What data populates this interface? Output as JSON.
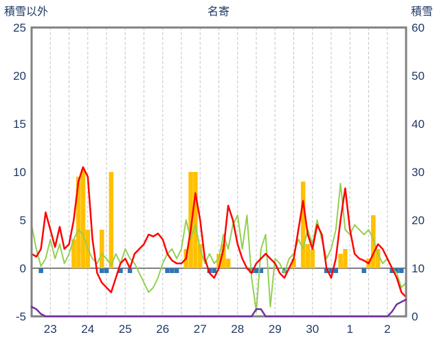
{
  "chart_data": {
    "type": "line",
    "title": "名寄",
    "left_axis": {
      "label": "積雪以外",
      "min": -5,
      "max": 25,
      "ticks": [
        -5,
        0,
        5,
        10,
        15,
        20,
        25
      ]
    },
    "right_axis": {
      "label": "積雪",
      "min": 0,
      "max": 60,
      "ticks": [
        0,
        10,
        20,
        30,
        40,
        50,
        60
      ]
    },
    "x_axis": {
      "day_labels": [
        "23",
        "24",
        "25",
        "26",
        "27",
        "28",
        "29",
        "30",
        "1",
        "2"
      ],
      "hours_total": 240,
      "gridline_interval_hours": 12
    },
    "sample_interval_hours": 3,
    "colors": {
      "red": "#FF0000",
      "green": "#92D050",
      "orange": "#FFC000",
      "blue": "#2E75B6",
      "purple": "#7030A0",
      "grid": "#C3C3C3",
      "frame": "#808080",
      "zero_line": "#808080",
      "text": "#1F3864",
      "background": "#FFFFFF"
    },
    "series": [
      {
        "name": "orange-bars",
        "axis": "left",
        "type": "bar",
        "direction": "up",
        "color": "#FFC000",
        "values": [
          0,
          0,
          0,
          0,
          0,
          0,
          0,
          0,
          0,
          3,
          9.5,
          10.3,
          4,
          0,
          0,
          4,
          0,
          10,
          0,
          0,
          0,
          0,
          0,
          0,
          0,
          0,
          0,
          0,
          0,
          0,
          0,
          0,
          0,
          2,
          10,
          10,
          2.5,
          0,
          0,
          0,
          1.5,
          2.5,
          1,
          0,
          0,
          0,
          0,
          0,
          0,
          0,
          0,
          0,
          0,
          0,
          0,
          0,
          1,
          0,
          9,
          2.5,
          2,
          0,
          0,
          0,
          0,
          0,
          1.5,
          2,
          0,
          0,
          0,
          0,
          1,
          5.5,
          2,
          0,
          0,
          0,
          0,
          0,
          0
        ]
      },
      {
        "name": "blue-bars",
        "axis": "left",
        "type": "bar",
        "direction": "down",
        "color": "#2E75B6",
        "values": [
          0,
          0,
          0.5,
          0,
          0,
          0,
          0,
          0,
          0,
          0,
          0,
          0,
          0,
          0,
          0,
          0.5,
          0.5,
          0,
          0,
          0.5,
          0,
          0.5,
          0,
          0,
          0,
          0,
          0,
          0,
          0,
          0.5,
          0.5,
          0.5,
          0,
          0,
          0,
          0,
          0,
          0,
          0.5,
          0.5,
          0,
          0,
          0,
          0,
          0,
          0,
          0,
          0.5,
          0.5,
          0.5,
          0,
          0,
          0,
          0,
          0.5,
          0,
          0,
          0,
          0,
          0,
          0,
          0,
          0,
          0.5,
          0.5,
          0.5,
          0,
          0,
          0,
          0,
          0,
          0.5,
          0,
          0,
          0,
          0,
          0,
          0.5,
          0.5,
          0.5,
          0
        ]
      },
      {
        "name": "green-line",
        "axis": "left",
        "type": "line",
        "stroke_width": 2,
        "color": "#92D050",
        "values": [
          4.5,
          2.0,
          0.2,
          1.0,
          3.0,
          1.0,
          2.5,
          0.5,
          1.5,
          3.0,
          4.0,
          3.5,
          2.0,
          1.0,
          0.5,
          1.5,
          1.0,
          0.3,
          1.5,
          0.5,
          2.0,
          1.0,
          0.5,
          -0.5,
          -1.5,
          -2.5,
          -2.0,
          -1.0,
          0.5,
          1.5,
          2.0,
          1.0,
          2.0,
          5.0,
          3.0,
          4.5,
          2.0,
          0.5,
          1.5,
          0.5,
          1.0,
          3.5,
          2.0,
          4.5,
          5.5,
          2.0,
          5.5,
          -1.0,
          -4.5,
          2.0,
          3.5,
          -4.0,
          1.0,
          0.5,
          -0.5,
          1.0,
          1.5,
          3.0,
          2.0,
          4.0,
          2.5,
          5.0,
          3.0,
          1.0,
          2.0,
          4.0,
          8.8,
          4.0,
          3.5,
          4.5,
          4.0,
          3.5,
          4.0,
          3.0,
          1.5,
          0.5,
          1.0,
          0.0,
          -0.5,
          -2.0,
          -1.5
        ]
      },
      {
        "name": "red-line",
        "axis": "left",
        "type": "line",
        "stroke_width": 2.5,
        "color": "#FF0000",
        "values": [
          1.5,
          1.2,
          2.0,
          5.8,
          4.0,
          2.2,
          4.3,
          2.0,
          2.5,
          5.0,
          9.0,
          10.5,
          9.5,
          3.0,
          -0.5,
          -1.5,
          -2.0,
          -2.5,
          -1.0,
          0.5,
          1.0,
          0.0,
          1.5,
          2.0,
          2.5,
          3.5,
          3.3,
          3.6,
          3.0,
          1.5,
          0.8,
          0.5,
          0.5,
          1.0,
          4.0,
          7.8,
          5.0,
          1.0,
          -0.5,
          -1.0,
          0.0,
          2.0,
          6.5,
          5.0,
          2.5,
          1.0,
          0.0,
          -0.5,
          0.5,
          1.0,
          1.5,
          1.0,
          0.5,
          -0.5,
          -1.0,
          0.0,
          1.0,
          4.0,
          7.0,
          3.5,
          2.0,
          4.5,
          3.5,
          0.0,
          -1.0,
          1.0,
          5.0,
          8.3,
          4.0,
          1.5,
          1.0,
          0.8,
          0.5,
          1.5,
          2.5,
          2.0,
          1.0,
          0.0,
          -1.0,
          -2.5,
          -3.0
        ]
      },
      {
        "name": "purple-line",
        "axis": "right",
        "type": "line",
        "stroke_width": 2.5,
        "color": "#7030A0",
        "values": [
          2,
          1.5,
          0.5,
          0,
          0,
          0,
          0,
          0,
          0,
          0,
          0,
          0,
          0,
          0,
          0,
          0,
          0,
          0,
          0,
          0,
          0,
          0,
          0,
          0,
          0,
          0,
          0,
          0,
          0,
          0,
          0,
          0,
          0,
          0,
          0,
          0,
          0,
          0,
          0,
          0,
          0,
          0,
          0,
          0,
          0,
          0,
          0,
          0,
          1.5,
          1.5,
          0,
          0,
          0,
          0,
          0,
          0,
          0,
          0,
          0,
          0,
          0,
          0,
          0,
          0,
          0,
          0,
          0,
          0,
          0,
          0,
          0,
          0,
          0,
          0,
          0,
          0,
          0,
          1,
          2.5,
          3,
          3.5
        ]
      }
    ]
  }
}
